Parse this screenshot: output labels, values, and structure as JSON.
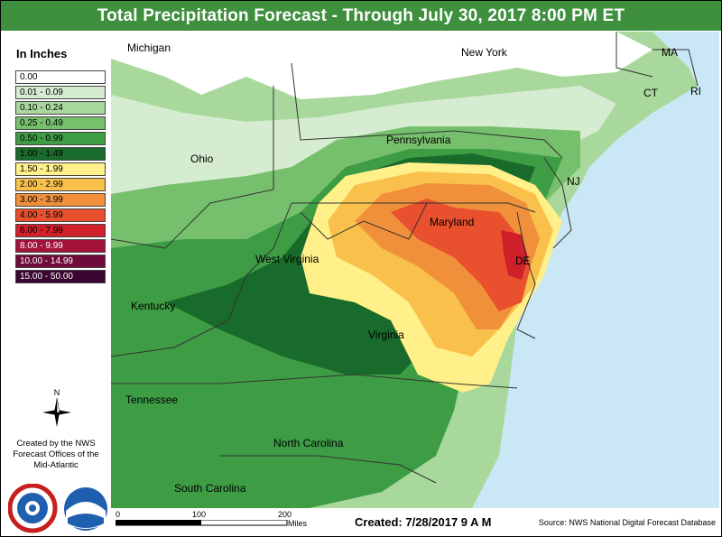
{
  "title": "Total Precipitation Forecast - Through July 30, 2017 8:00 PM ET",
  "legend": {
    "title": "In Inches",
    "items": [
      {
        "label": "0.00",
        "color": "#ffffff"
      },
      {
        "label": "0.01 - 0.09",
        "color": "#d6ecd0"
      },
      {
        "label": "0.10 - 0.24",
        "color": "#a8d89c"
      },
      {
        "label": "0.25 - 0.49",
        "color": "#76bf6c"
      },
      {
        "label": "0.50 - 0.99",
        "color": "#3e9c45"
      },
      {
        "label": "1.00 - 1.49",
        "color": "#196b2b"
      },
      {
        "label": "1.50 - 1.99",
        "color": "#fff08a"
      },
      {
        "label": "2.00 - 2.99",
        "color": "#f9c14c"
      },
      {
        "label": "3.00 - 3.99",
        "color": "#f0903b"
      },
      {
        "label": "4.00 - 5.99",
        "color": "#e8502e"
      },
      {
        "label": "6.00 - 7.99",
        "color": "#d0202a"
      },
      {
        "label": "8.00 - 9.99",
        "color": "#a3123a"
      },
      {
        "label": "10.00 - 14.99",
        "color": "#6e0b3a"
      },
      {
        "label": "15.00 - 50.00",
        "color": "#3a0530"
      }
    ]
  },
  "credit": {
    "line1": "Created by the NWS",
    "line2": "Forecast Offices of the",
    "line3": "Mid-Atlantic"
  },
  "north_label": "N",
  "map": {
    "water_color": "#c9e7f5",
    "labels": [
      {
        "name": "Michigan"
      },
      {
        "name": "New York"
      },
      {
        "name": "MA"
      },
      {
        "name": "CT"
      },
      {
        "name": "RI"
      },
      {
        "name": "Ohio"
      },
      {
        "name": "Pennsylvania"
      },
      {
        "name": "NJ"
      },
      {
        "name": "Maryland"
      },
      {
        "name": "DE"
      },
      {
        "name": "West Virginia"
      },
      {
        "name": "Kentucky"
      },
      {
        "name": "Virginia"
      },
      {
        "name": "Tennessee"
      },
      {
        "name": "North Carolina"
      },
      {
        "name": "South Carolina"
      }
    ]
  },
  "scale": {
    "ticks": [
      "0",
      "100",
      "200"
    ],
    "unit": "Miles"
  },
  "created": "Created: 7/28/2017 9 A M",
  "source": "Source: NWS National Digital Forecast Database"
}
